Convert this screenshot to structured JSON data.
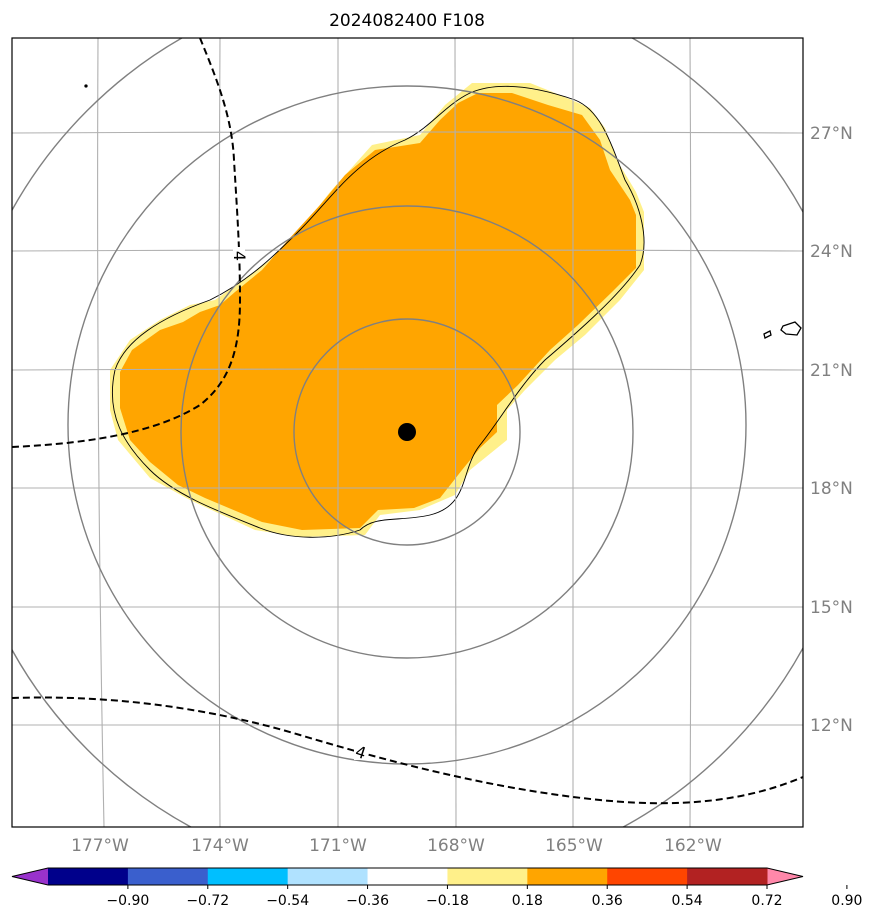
{
  "title": "2024082400 F108",
  "map": {
    "lon_labels": [
      "177°W",
      "174°W",
      "171°W",
      "168°W",
      "165°W",
      "162°W"
    ],
    "lat_labels": [
      "27°N",
      "24°N",
      "21°N",
      "18°N",
      "15°N",
      "12°N"
    ],
    "contour_labels": [
      "4",
      "4"
    ],
    "storm_center": {
      "lon": "169°W",
      "lat": "19.5°N"
    },
    "shading_colors": {
      "light": "#fff08a",
      "main": "#ffa500"
    }
  },
  "colorbar": {
    "ticks": [
      "−0.90",
      "−0.72",
      "−0.54",
      "−0.36",
      "−0.18",
      "0.18",
      "0.36",
      "0.54",
      "0.72",
      "0.90"
    ],
    "colors": [
      "#9932cc",
      "#00008b",
      "#3a5fcd",
      "#00bfff",
      "#b0e2ff",
      "#ffffff",
      "#fff08a",
      "#ffa500",
      "#ff4500",
      "#b22222",
      "#ff88aa"
    ]
  }
}
